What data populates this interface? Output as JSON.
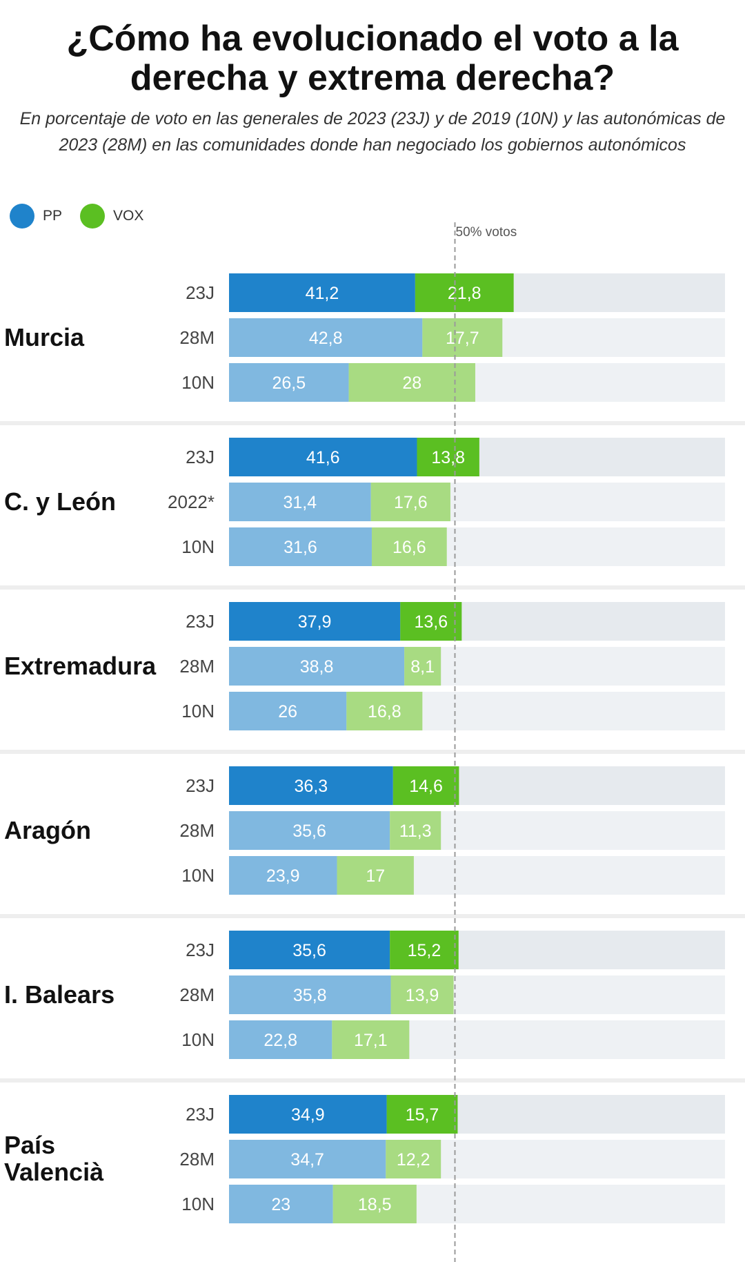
{
  "colors": {
    "pp_strong": "#1f83cb",
    "pp_light": "#80b8e0",
    "vox_strong": "#5bbf22",
    "vox_light": "#a8db82",
    "track_strong": "#e6eaee",
    "track_light": "#eef1f4",
    "separator": "#eeeeee"
  },
  "header": {
    "title": "¿Cómo ha evolucionado el voto a la derecha y extrema derecha?",
    "subtitle": "En porcentaje de voto en las generales de 2023 (23J) y de 2019 (10N) y las autonómicas de 2023 (28M) en las comunidades donde han negociado los gobiernos autonómicos"
  },
  "legend": [
    {
      "name": "PP",
      "color": "#1f83cb"
    },
    {
      "name": "VOX",
      "color": "#5bbf22"
    }
  ],
  "chart_data": {
    "type": "bar",
    "orientation": "horizontal",
    "stacked": true,
    "xlim": [
      0,
      100
    ],
    "reference_line": {
      "value": 50,
      "label": "50% votos"
    },
    "series_names": [
      "PP",
      "VOX"
    ],
    "groups": [
      {
        "region": "Murcia",
        "rows": [
          {
            "label": "23J",
            "pp": 41.2,
            "pp_label": "41,2",
            "vox": 21.8,
            "vox_label": "21,8"
          },
          {
            "label": "28M",
            "pp": 42.8,
            "pp_label": "42,8",
            "vox": 17.7,
            "vox_label": "17,7"
          },
          {
            "label": "10N",
            "pp": 26.5,
            "pp_label": "26,5",
            "vox": 28,
            "vox_label": "28"
          }
        ]
      },
      {
        "region": "C. y León",
        "rows": [
          {
            "label": "23J",
            "pp": 41.6,
            "pp_label": "41,6",
            "vox": 13.8,
            "vox_label": "13,8"
          },
          {
            "label": "2022*",
            "pp": 31.4,
            "pp_label": "31,4",
            "vox": 17.6,
            "vox_label": "17,6"
          },
          {
            "label": "10N",
            "pp": 31.6,
            "pp_label": "31,6",
            "vox": 16.6,
            "vox_label": "16,6"
          }
        ]
      },
      {
        "region": "Extremadura",
        "rows": [
          {
            "label": "23J",
            "pp": 37.9,
            "pp_label": "37,9",
            "vox": 13.6,
            "vox_label": "13,6"
          },
          {
            "label": "28M",
            "pp": 38.8,
            "pp_label": "38,8",
            "vox": 8.1,
            "vox_label": "8,1"
          },
          {
            "label": "10N",
            "pp": 26,
            "pp_label": "26",
            "vox": 16.8,
            "vox_label": "16,8"
          }
        ]
      },
      {
        "region": "Aragón",
        "rows": [
          {
            "label": "23J",
            "pp": 36.3,
            "pp_label": "36,3",
            "vox": 14.6,
            "vox_label": "14,6"
          },
          {
            "label": "28M",
            "pp": 35.6,
            "pp_label": "35,6",
            "vox": 11.3,
            "vox_label": "11,3"
          },
          {
            "label": "10N",
            "pp": 23.9,
            "pp_label": "23,9",
            "vox": 17,
            "vox_label": "17"
          }
        ]
      },
      {
        "region": "I. Balears",
        "rows": [
          {
            "label": "23J",
            "pp": 35.6,
            "pp_label": "35,6",
            "vox": 15.2,
            "vox_label": "15,2"
          },
          {
            "label": "28M",
            "pp": 35.8,
            "pp_label": "35,8",
            "vox": 13.9,
            "vox_label": "13,9"
          },
          {
            "label": "10N",
            "pp": 22.8,
            "pp_label": "22,8",
            "vox": 17.1,
            "vox_label": "17,1"
          }
        ]
      },
      {
        "region": "País Valencià",
        "rows": [
          {
            "label": "23J",
            "pp": 34.9,
            "pp_label": "34,9",
            "vox": 15.7,
            "vox_label": "15,7"
          },
          {
            "label": "28M",
            "pp": 34.7,
            "pp_label": "34,7",
            "vox": 12.2,
            "vox_label": "12,2"
          },
          {
            "label": "10N",
            "pp": 23,
            "pp_label": "23",
            "vox": 18.5,
            "vox_label": "18,5"
          }
        ]
      }
    ]
  }
}
